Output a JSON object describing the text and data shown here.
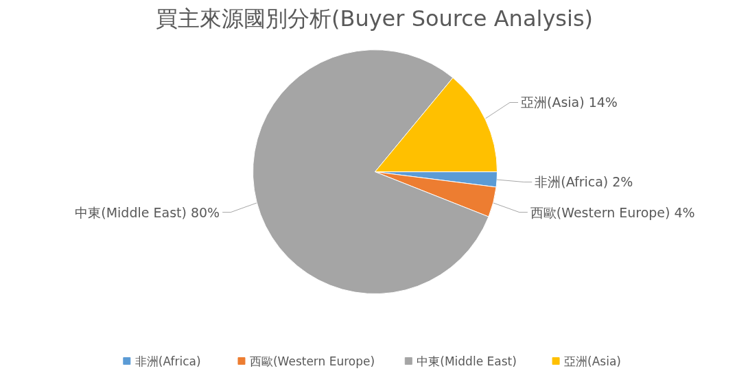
{
  "chart_data": {
    "type": "pie",
    "title": "買主來源國別分析(Buyer Source Analysis)",
    "categories": [
      "非洲(Africa)",
      "西歐(Western Europe)",
      "中東(Middle East)",
      "亞洲(Asia)"
    ],
    "values": [
      2,
      4,
      80,
      14
    ],
    "colors": [
      "#5b9bd5",
      "#ed7d31",
      "#a5a5a5",
      "#ffc000"
    ],
    "value_labels": [
      "2%",
      "4%",
      "80%",
      "14%"
    ],
    "legend": "bottom"
  }
}
